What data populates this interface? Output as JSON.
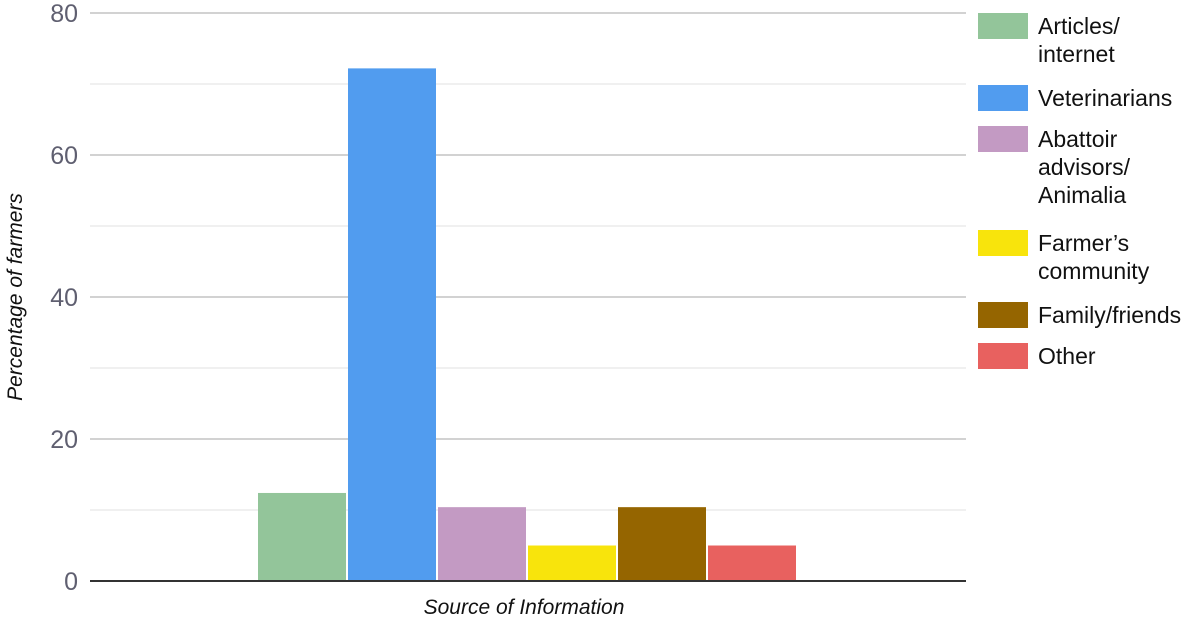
{
  "chart_data": {
    "type": "bar",
    "xlabel": "Source of Information",
    "ylabel": "Percentage of farmers",
    "ylim": [
      0,
      80
    ],
    "yticks": [
      0,
      20,
      40,
      60,
      80
    ],
    "grid": true,
    "legend_position": "right",
    "series": [
      {
        "name": "Articles/ internet",
        "legend_lines": [
          "Articles/",
          "internet"
        ],
        "value": 12.4,
        "color": "#93c59a"
      },
      {
        "name": "Veterinarians",
        "legend_lines": [
          "Veterinarians"
        ],
        "value": 72.2,
        "color": "#519cef"
      },
      {
        "name": "Abattoir advisors/ Animalia",
        "legend_lines": [
          "Abattoir",
          "advisors/",
          "Animalia"
        ],
        "value": 10.4,
        "color": "#c39ac3"
      },
      {
        "name": "Farmer’s community",
        "legend_lines": [
          "Farmer’s",
          "community"
        ],
        "value": 5.0,
        "color": "#f8e40c"
      },
      {
        "name": "Family/friends",
        "legend_lines": [
          "Family/friends"
        ],
        "value": 10.4,
        "color": "#956500"
      },
      {
        "name": "Other",
        "legend_lines": [
          "Other"
        ],
        "value": 5.0,
        "color": "#e8615f"
      }
    ]
  }
}
